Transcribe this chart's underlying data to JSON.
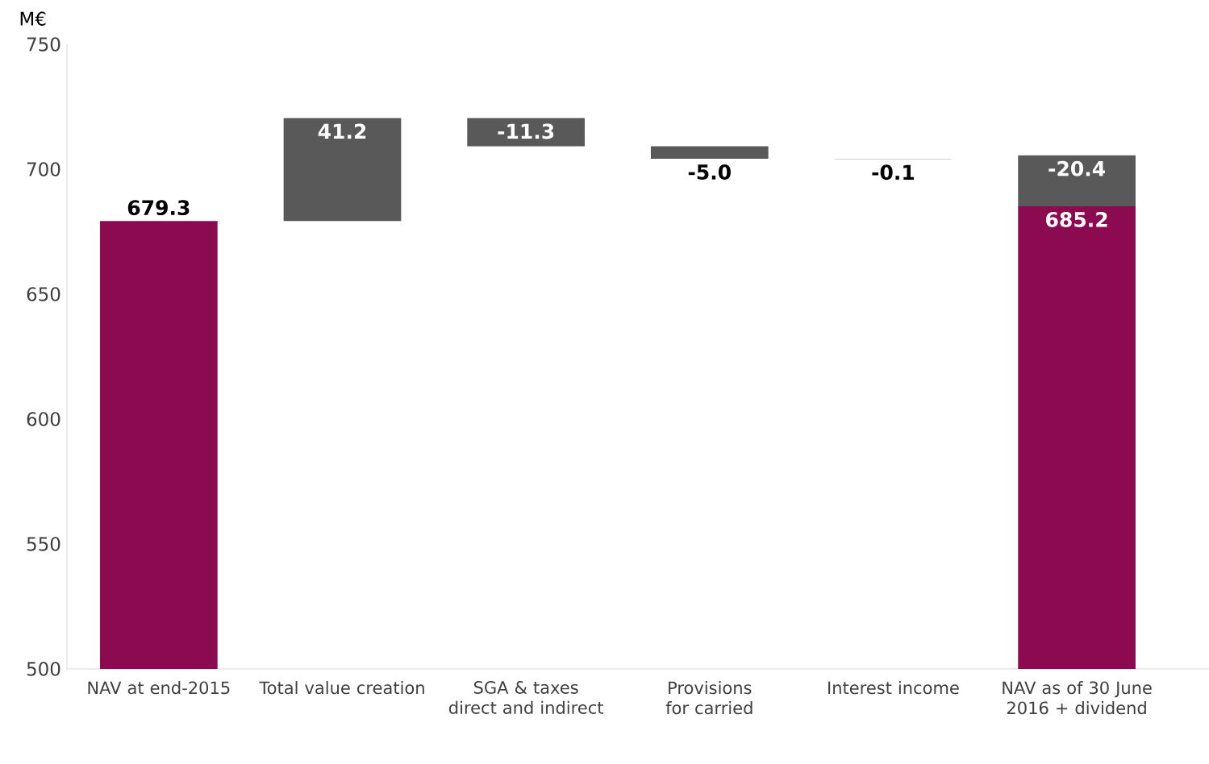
{
  "chart_data": {
    "type": "bar",
    "ylabel": "M€",
    "categories": [
      "NAV at end-2015",
      "Total value creation",
      "SGA & taxes direct and indirect",
      "Provisions for carried",
      "Interest income",
      "NAV as of 30 June 2016 + dividend"
    ],
    "series": [
      {
        "color": "#8c0a50",
        "values": [
          679.3,
          null,
          null,
          null,
          null,
          685.2
        ],
        "value_labels": [
          "679.3",
          null,
          null,
          null,
          null,
          "685.2"
        ]
      },
      {
        "color": "#595959",
        "base": [
          null,
          679.3,
          720.5,
          709.2,
          704.2,
          705.6
        ],
        "values": [
          null,
          41.2,
          -11.3,
          -5.0,
          -0.1,
          -20.4
        ],
        "value_labels": [
          null,
          "41.2",
          "-11.3",
          "-5.0",
          "-0.1",
          "-20.4"
        ]
      }
    ],
    "ylim": [
      500,
      750
    ],
    "yticks": [
      500,
      550,
      600,
      650,
      700,
      750
    ]
  }
}
